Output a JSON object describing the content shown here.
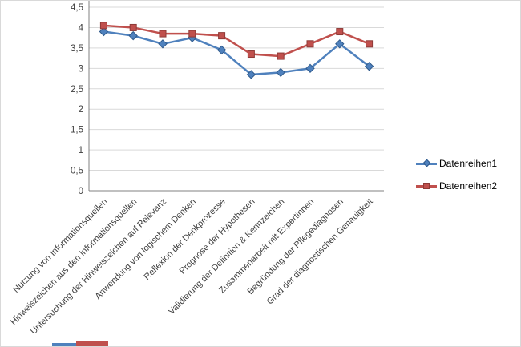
{
  "chart_data": {
    "type": "line",
    "title": "",
    "xlabel": "",
    "ylabel": "",
    "categories": [
      "Nutzung von Informationsquellen",
      "Hinweiszeichen aus den Informationsquellen",
      "Untersuchung der Hinweiszeichen auf Relevanz",
      "Anwendung von logischem Denken",
      "Reflexion der Denkprozesse",
      "Prognose der Hypothesen",
      "Validierung der Definition & Kennzeichen",
      "Zusammenarbeit mit Expertinnen",
      "Begründung der Pflegediagnosen",
      "Grad der diagnostischen Genauigkeit"
    ],
    "series": [
      {
        "name": "Datenreihen1",
        "marker": "diamond",
        "color": "#4F81BD",
        "marker_border": "#2F5A8C",
        "values": [
          3.9,
          3.8,
          3.6,
          3.75,
          3.45,
          2.85,
          2.9,
          3.0,
          3.6,
          3.05
        ]
      },
      {
        "name": "Datenreihen2",
        "marker": "square",
        "color": "#C0504D",
        "marker_border": "#8E3A37",
        "values": [
          4.05,
          4.0,
          3.85,
          3.85,
          3.8,
          3.35,
          3.3,
          3.6,
          3.9,
          3.6
        ]
      }
    ],
    "ylim": [
      0,
      4.5
    ],
    "ytick_step": 0.5,
    "ytick_labels": [
      "0",
      "0,5",
      "1",
      "1,5",
      "2",
      "2,5",
      "3",
      "3,5",
      "4",
      "4,5"
    ],
    "grid": true,
    "legend_position": "right"
  },
  "colors": {
    "gridline": "#D9D9D9",
    "axis": "#808080",
    "tick_text": "#404040"
  }
}
